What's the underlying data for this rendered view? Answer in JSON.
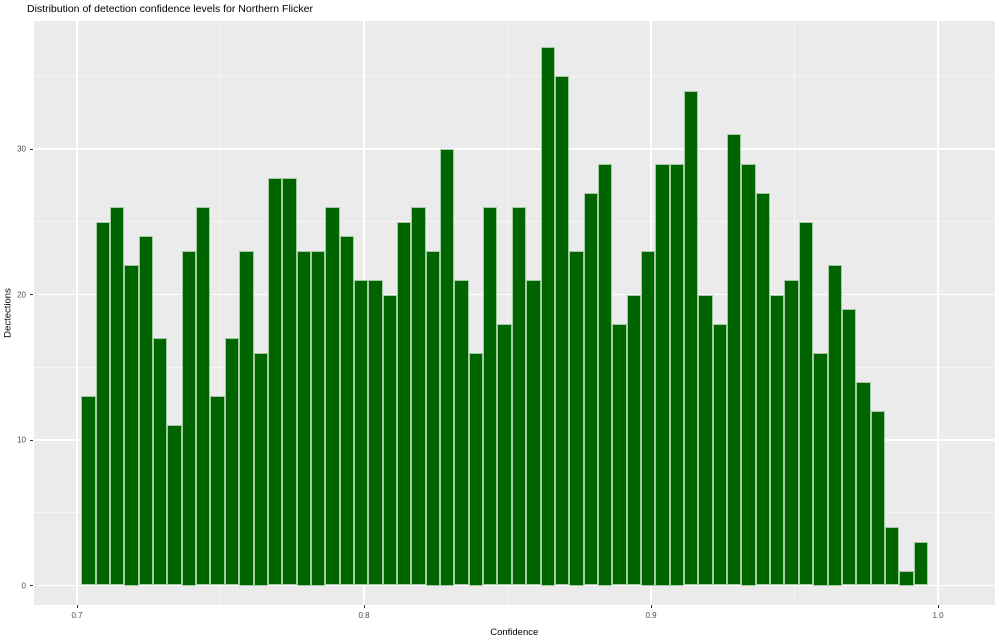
{
  "chart_data": {
    "type": "bar",
    "subtype": "histogram",
    "title": "Distribution of detection confidence levels for Northern Flicker",
    "xlabel": "Confidence",
    "ylabel": "Dectections",
    "bin_start": 0.7015,
    "bin_width": 0.005,
    "values": [
      13,
      25,
      26,
      22,
      24,
      17,
      11,
      23,
      26,
      13,
      17,
      23,
      16,
      28,
      28,
      23,
      23,
      26,
      24,
      21,
      21,
      20,
      25,
      26,
      23,
      30,
      21,
      16,
      26,
      18,
      26,
      21,
      37,
      35,
      23,
      27,
      29,
      18,
      20,
      23,
      29,
      29,
      34,
      20,
      18,
      31,
      29,
      27,
      20,
      21,
      25,
      16,
      22,
      19,
      14,
      12,
      4,
      1,
      3
    ],
    "x_ticks": [
      0.7,
      0.8,
      0.9,
      1.0
    ],
    "x_tick_labels": [
      "0.7",
      "0.8",
      "0.9",
      "1.0"
    ],
    "y_ticks": [
      0,
      10,
      20,
      30
    ],
    "y_tick_labels": [
      "0",
      "10",
      "20",
      "30"
    ],
    "x_minor_ticks": [
      0.75,
      0.85,
      0.95
    ],
    "y_minor_ticks": [
      5,
      15,
      25,
      35
    ],
    "xlim": [
      0.68484,
      1.01986
    ],
    "ylim": [
      -1.34,
      38.8
    ],
    "legend": "none",
    "grid": true,
    "bar_color": "#006400",
    "bar_border_color": "rgba(255,255,255,0.65)",
    "panel_bg": "#ebebeb",
    "grid_major_color": "#ffffff",
    "grid_minor_color": "rgba(255,255,255,0.55)",
    "tick_color": "#333333",
    "tick_label_color": "#4d4d4d"
  }
}
